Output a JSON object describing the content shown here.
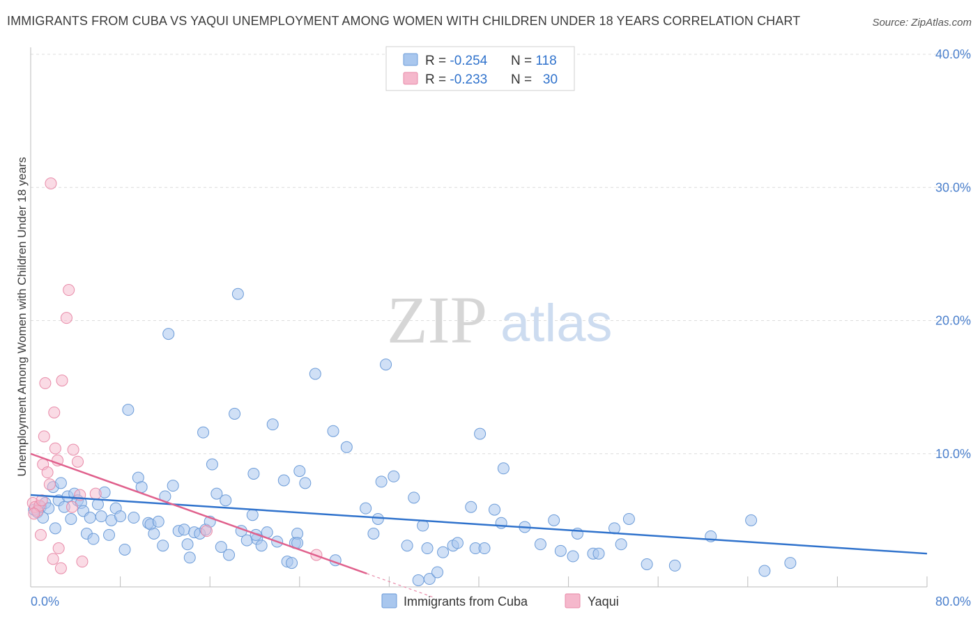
{
  "header": {
    "title": "IMMIGRANTS FROM CUBA VS YAQUI UNEMPLOYMENT AMONG WOMEN WITH CHILDREN UNDER 18 YEARS CORRELATION CHART",
    "source": "Source: ZipAtlas.com"
  },
  "watermark": {
    "zip": "ZIP",
    "atlas": "atlas"
  },
  "colors": {
    "blue_fill": "#a9c7ee",
    "blue_stroke": "#6b9bd8",
    "blue_line": "#2f72cc",
    "pink_fill": "#f5b8cc",
    "pink_stroke": "#e88aa8",
    "pink_line": "#e0608c",
    "axis_text": "#4a7fcc",
    "grid": "#dcdcdc"
  },
  "legend": {
    "rows": [
      {
        "series": "Immigrants from Cuba",
        "r_label": "R = ",
        "r_value": "-0.254",
        "n_label": "N = ",
        "n_value": "118"
      },
      {
        "series": "Yaqui",
        "r_label": "R = ",
        "r_value": "-0.233",
        "n_label": "N = ",
        "n_value": " 30"
      }
    ]
  },
  "chart_data": {
    "type": "scatter",
    "title": "IMMIGRANTS FROM CUBA VS YAQUI UNEMPLOYMENT AMONG WOMEN WITH CHILDREN UNDER 18 YEARS CORRELATION CHART",
    "xlabel": "",
    "ylabel": "Unemployment Among Women with Children Under 18 years",
    "xlim": [
      0,
      80
    ],
    "ylim": [
      0,
      40
    ],
    "x_tick_labels": [
      "0.0%",
      "80.0%"
    ],
    "y_ticks": [
      10,
      20,
      30,
      40
    ],
    "y_tick_labels": [
      "10.0%",
      "20.0%",
      "30.0%",
      "40.0%"
    ],
    "legend_position": "bottom",
    "series": [
      {
        "name": "Immigrants from Cuba",
        "color": "blue",
        "trend": {
          "x": [
            0,
            80
          ],
          "y": [
            6.9,
            2.5
          ]
        },
        "points": [
          [
            0.3,
            5.8
          ],
          [
            0.6,
            5.6
          ],
          [
            0.9,
            6.0
          ],
          [
            1.1,
            5.2
          ],
          [
            1.3,
            6.3
          ],
          [
            1.6,
            5.9
          ],
          [
            2.0,
            7.5
          ],
          [
            2.2,
            4.4
          ],
          [
            2.5,
            6.5
          ],
          [
            2.7,
            7.8
          ],
          [
            3.0,
            6.0
          ],
          [
            3.3,
            6.8
          ],
          [
            3.6,
            5.1
          ],
          [
            3.9,
            7.0
          ],
          [
            4.2,
            6.5
          ],
          [
            4.5,
            6.3
          ],
          [
            4.7,
            5.7
          ],
          [
            5.0,
            4.0
          ],
          [
            5.3,
            5.2
          ],
          [
            5.6,
            3.6
          ],
          [
            6.0,
            6.2
          ],
          [
            6.3,
            5.3
          ],
          [
            6.6,
            7.1
          ],
          [
            7.0,
            3.9
          ],
          [
            7.2,
            5.0
          ],
          [
            7.6,
            5.9
          ],
          [
            8.0,
            5.3
          ],
          [
            8.4,
            2.8
          ],
          [
            8.7,
            13.3
          ],
          [
            9.2,
            5.2
          ],
          [
            9.6,
            8.2
          ],
          [
            9.9,
            7.5
          ],
          [
            10.5,
            4.8
          ],
          [
            10.7,
            4.7
          ],
          [
            11.0,
            4.0
          ],
          [
            11.4,
            4.9
          ],
          [
            11.8,
            3.1
          ],
          [
            12.0,
            6.8
          ],
          [
            12.3,
            19.0
          ],
          [
            12.7,
            7.6
          ],
          [
            13.2,
            4.2
          ],
          [
            13.7,
            4.3
          ],
          [
            14.0,
            3.2
          ],
          [
            14.2,
            2.2
          ],
          [
            14.6,
            4.1
          ],
          [
            15.1,
            4.0
          ],
          [
            15.4,
            11.6
          ],
          [
            15.6,
            4.3
          ],
          [
            16.0,
            4.9
          ],
          [
            16.2,
            9.2
          ],
          [
            16.6,
            7.0
          ],
          [
            17.0,
            3.0
          ],
          [
            17.4,
            6.5
          ],
          [
            17.7,
            2.4
          ],
          [
            18.2,
            13.0
          ],
          [
            18.5,
            22.0
          ],
          [
            18.8,
            4.2
          ],
          [
            19.3,
            3.5
          ],
          [
            19.8,
            5.4
          ],
          [
            19.9,
            8.5
          ],
          [
            20.2,
            3.6
          ],
          [
            20.6,
            3.1
          ],
          [
            21.1,
            4.1
          ],
          [
            21.6,
            12.2
          ],
          [
            22.0,
            3.4
          ],
          [
            22.6,
            8.0
          ],
          [
            22.9,
            1.9
          ],
          [
            23.3,
            1.8
          ],
          [
            23.6,
            3.3
          ],
          [
            23.8,
            4.0
          ],
          [
            24.0,
            8.7
          ],
          [
            24.5,
            7.8
          ],
          [
            25.4,
            16.0
          ],
          [
            27.0,
            11.7
          ],
          [
            27.2,
            2.0
          ],
          [
            28.2,
            10.5
          ],
          [
            29.9,
            5.9
          ],
          [
            30.6,
            4.0
          ],
          [
            31.0,
            5.1
          ],
          [
            31.3,
            7.9
          ],
          [
            31.7,
            16.7
          ],
          [
            32.4,
            8.3
          ],
          [
            33.6,
            3.1
          ],
          [
            34.2,
            6.7
          ],
          [
            35.0,
            4.6
          ],
          [
            35.4,
            2.9
          ],
          [
            35.6,
            0.6
          ],
          [
            36.3,
            1.1
          ],
          [
            36.8,
            2.6
          ],
          [
            37.7,
            3.1
          ],
          [
            38.1,
            3.3
          ],
          [
            39.3,
            6.0
          ],
          [
            39.7,
            2.9
          ],
          [
            40.1,
            11.5
          ],
          [
            40.5,
            2.9
          ],
          [
            41.4,
            5.8
          ],
          [
            42.0,
            4.8
          ],
          [
            42.2,
            8.9
          ],
          [
            44.1,
            4.5
          ],
          [
            45.5,
            3.2
          ],
          [
            46.7,
            5.0
          ],
          [
            47.3,
            2.7
          ],
          [
            48.4,
            2.3
          ],
          [
            48.8,
            4.0
          ],
          [
            50.2,
            2.5
          ],
          [
            50.7,
            2.5
          ],
          [
            52.1,
            4.4
          ],
          [
            52.7,
            3.2
          ],
          [
            53.4,
            5.1
          ],
          [
            55.0,
            1.7
          ],
          [
            57.5,
            1.6
          ],
          [
            60.7,
            3.8
          ],
          [
            64.3,
            5.0
          ],
          [
            65.5,
            1.2
          ],
          [
            67.8,
            1.8
          ],
          [
            34.6,
            0.5
          ],
          [
            20.1,
            3.9
          ],
          [
            23.8,
            3.3
          ]
        ]
      },
      {
        "name": "Yaqui",
        "color": "pink",
        "trend": {
          "x": [
            0,
            30
          ],
          "y": [
            10.0,
            1.0
          ]
        },
        "trend_dashed_extension": {
          "x": [
            30,
            36
          ],
          "y": [
            1.0,
            -0.8
          ]
        },
        "points": [
          [
            0.2,
            6.3
          ],
          [
            0.4,
            6.0
          ],
          [
            0.6,
            5.7
          ],
          [
            0.8,
            6.1
          ],
          [
            0.9,
            3.9
          ],
          [
            1.0,
            6.5
          ],
          [
            1.1,
            9.2
          ],
          [
            1.2,
            11.3
          ],
          [
            1.3,
            15.3
          ],
          [
            1.5,
            8.6
          ],
          [
            1.7,
            7.7
          ],
          [
            1.8,
            30.3
          ],
          [
            2.0,
            2.1
          ],
          [
            2.1,
            13.1
          ],
          [
            2.2,
            10.4
          ],
          [
            2.4,
            9.5
          ],
          [
            2.5,
            2.9
          ],
          [
            2.7,
            1.4
          ],
          [
            2.8,
            15.5
          ],
          [
            3.2,
            20.2
          ],
          [
            3.4,
            22.3
          ],
          [
            3.7,
            6.0
          ],
          [
            3.8,
            10.3
          ],
          [
            4.2,
            9.4
          ],
          [
            4.4,
            6.9
          ],
          [
            4.6,
            1.9
          ],
          [
            5.8,
            7.0
          ],
          [
            15.7,
            4.2
          ],
          [
            25.5,
            2.4
          ],
          [
            0.3,
            5.5
          ]
        ]
      }
    ]
  }
}
